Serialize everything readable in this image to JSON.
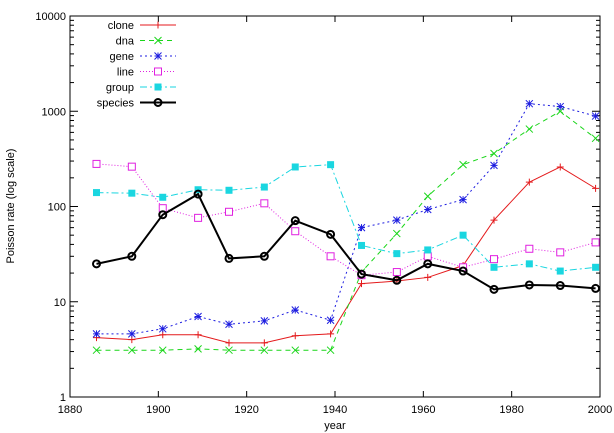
{
  "chart_data": {
    "type": "line",
    "xlabel": "year",
    "ylabel": "Poisson rate (log scale)",
    "xlim": [
      1880,
      2000
    ],
    "ylim": [
      1,
      10000
    ],
    "yscale": "log",
    "grid": false,
    "legend_position": "top-left",
    "x_ticks": [
      1880,
      1900,
      1920,
      1940,
      1960,
      1980,
      2000
    ],
    "x_tick_labels": [
      "1880",
      "1900",
      "1920",
      "1940",
      "1960",
      "1980",
      "2000"
    ],
    "y_ticks": [
      1,
      10,
      100,
      1000,
      10000
    ],
    "y_tick_labels": [
      "1",
      "10",
      "100",
      "1000",
      "10000"
    ],
    "x": [
      1886,
      1894,
      1901,
      1909,
      1916,
      1924,
      1931,
      1939,
      1946,
      1954,
      1961,
      1969,
      1976,
      1984,
      1991,
      1999
    ],
    "series": [
      {
        "name": "clone",
        "color": "#e41a1c",
        "marker": "plus",
        "dash": "",
        "width": 1,
        "values": [
          4.2,
          4.0,
          4.5,
          4.5,
          3.7,
          3.7,
          4.4,
          4.6,
          15.5,
          16.5,
          18.0,
          24.0,
          72.0,
          180.0,
          260.0,
          155.0
        ]
      },
      {
        "name": "dna",
        "color": "#1ad61a",
        "marker": "x",
        "dash": "5,4",
        "width": 1,
        "values": [
          3.1,
          3.1,
          3.1,
          3.2,
          3.1,
          3.1,
          3.1,
          3.1,
          20.5,
          52.0,
          128.0,
          275.0,
          360.0,
          650.0,
          1000.0,
          520.0
        ]
      },
      {
        "name": "gene",
        "color": "#1d1de0",
        "marker": "star",
        "dash": "2,3",
        "width": 1,
        "values": [
          4.6,
          4.6,
          5.2,
          7.0,
          5.8,
          6.3,
          8.2,
          6.4,
          60.0,
          72.0,
          93.0,
          118.0,
          270.0,
          1200.0,
          1120.0,
          890.0
        ]
      },
      {
        "name": "line",
        "color": "#e020e0",
        "marker": "open-square",
        "dash": "1,2",
        "width": 1,
        "values": [
          280.0,
          262.0,
          96.0,
          76.0,
          88.0,
          108.0,
          55.0,
          30.0,
          19.0,
          20.5,
          30.0,
          23.0,
          28.0,
          36.0,
          33.0,
          42.0
        ]
      },
      {
        "name": "group",
        "color": "#1ad6e0",
        "marker": "filled-square",
        "dash": "7,3,2,3",
        "width": 1,
        "values": [
          140.0,
          138.0,
          125.0,
          150.0,
          148.0,
          160.0,
          260.0,
          275.0,
          39.0,
          32.0,
          35.0,
          50.0,
          23.0,
          25.0,
          21.0,
          23.0
        ]
      },
      {
        "name": "species",
        "color": "#000000",
        "marker": "open-circle",
        "dash": "",
        "width": 2,
        "values": [
          25.0,
          30.0,
          82.0,
          135.0,
          28.5,
          30.0,
          71.0,
          51.0,
          19.5,
          16.8,
          25.0,
          21.0,
          13.5,
          15.0,
          14.8,
          13.8
        ]
      }
    ]
  }
}
